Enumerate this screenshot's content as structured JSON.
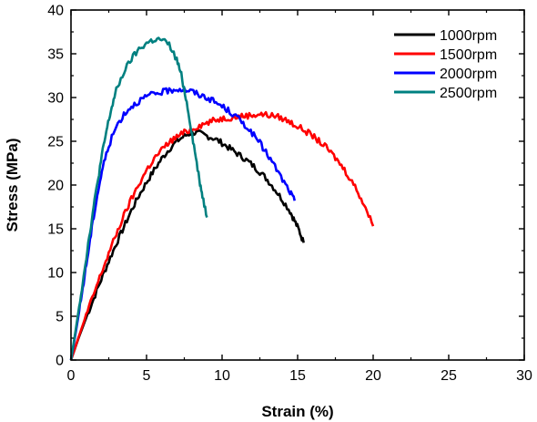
{
  "chart_data": {
    "type": "line",
    "title": "",
    "xlabel": "Strain (%)",
    "ylabel": "Stress (MPa)",
    "xlim": [
      0,
      30
    ],
    "ylim": [
      0,
      40
    ],
    "xticks": [
      "0",
      "5",
      "10",
      "15",
      "20",
      "25",
      "30"
    ],
    "yticks": [
      "0",
      "5",
      "10",
      "15",
      "20",
      "25",
      "30",
      "35",
      "40"
    ],
    "grid": false,
    "legend_position": "top-right",
    "series": [
      {
        "name": "1000rpm",
        "color": "#000000",
        "x": [
          0,
          0.5,
          1,
          1.5,
          2,
          2.5,
          3,
          3.5,
          4,
          4.5,
          5,
          5.5,
          6,
          6.5,
          7,
          7.5,
          8,
          8.5,
          9,
          9.5,
          10,
          10.5,
          11,
          11.5,
          12,
          12.5,
          13,
          13.5,
          14,
          14.5,
          14.8,
          15.1,
          15.4
        ],
        "y": [
          0,
          2.5,
          4.8,
          7.0,
          9.2,
          11.3,
          13.3,
          15.2,
          17.1,
          18.8,
          20.3,
          21.7,
          23.0,
          24.1,
          25.0,
          25.6,
          26.0,
          25.9,
          25.6,
          25.3,
          24.8,
          24.2,
          23.6,
          23.0,
          22.3,
          21.5,
          20.6,
          19.5,
          18.3,
          17.0,
          15.9,
          14.8,
          13.4
        ]
      },
      {
        "name": "1500rpm",
        "color": "#ff0000",
        "x": [
          0,
          0.5,
          1,
          1.5,
          2,
          2.5,
          3,
          3.5,
          4,
          4.5,
          5,
          5.5,
          6,
          6.5,
          7,
          7.5,
          8,
          8.5,
          9,
          9.5,
          10,
          10.5,
          11,
          11.5,
          12,
          12.5,
          13,
          13.5,
          14,
          14.5,
          15,
          15.5,
          16,
          16.5,
          17,
          17.5,
          18,
          18.5,
          19,
          19.5,
          20
        ],
        "y": [
          0,
          2.6,
          5.1,
          7.5,
          9.9,
          12.2,
          14.4,
          16.5,
          18.4,
          20.1,
          21.7,
          23.0,
          24.0,
          24.9,
          25.5,
          26.0,
          26.4,
          26.8,
          27.1,
          27.4,
          27.6,
          27.7,
          27.8,
          27.9,
          28.0,
          28.1,
          28.0,
          27.9,
          27.6,
          27.2,
          26.7,
          26.2,
          25.6,
          24.9,
          24.1,
          23.1,
          22.0,
          20.7,
          19.2,
          17.4,
          15.3
        ]
      },
      {
        "name": "2000rpm",
        "color": "#0000ff",
        "x": [
          0,
          0.3,
          0.6,
          0.9,
          1.2,
          1.5,
          1.8,
          2.1,
          2.5,
          3,
          3.5,
          4,
          4.5,
          5,
          5.5,
          6,
          6.5,
          7,
          7.5,
          8,
          8.5,
          9,
          9.5,
          10,
          10.5,
          11,
          11.5,
          12,
          12.5,
          13,
          13.5,
          14,
          14.5,
          14.8
        ],
        "y": [
          0,
          3.0,
          6.2,
          9.6,
          13.0,
          16.4,
          19.4,
          22.0,
          24.5,
          26.7,
          28.1,
          29.0,
          29.6,
          30.1,
          30.4,
          30.6,
          30.8,
          31.0,
          30.9,
          30.7,
          30.3,
          30.0,
          29.5,
          29.0,
          28.4,
          27.7,
          26.9,
          25.9,
          24.8,
          23.5,
          22.1,
          20.6,
          19.2,
          18.2
        ]
      },
      {
        "name": "2500rpm",
        "color": "#008080",
        "x": [
          0,
          0.3,
          0.6,
          0.9,
          1.2,
          1.5,
          1.8,
          2.1,
          2.4,
          2.7,
          3,
          3.5,
          4,
          4.5,
          5,
          5.5,
          6,
          6.5,
          7,
          7.3,
          7.6,
          7.9,
          8.2,
          8.5,
          8.7,
          9.0
        ],
        "y": [
          0,
          3.3,
          6.8,
          10.4,
          14.0,
          17.5,
          20.8,
          23.9,
          26.6,
          28.9,
          30.8,
          32.9,
          34.4,
          35.5,
          36.2,
          36.6,
          36.6,
          36.0,
          34.3,
          32.6,
          30.0,
          27.0,
          23.8,
          20.6,
          18.8,
          16.3
        ]
      }
    ]
  }
}
